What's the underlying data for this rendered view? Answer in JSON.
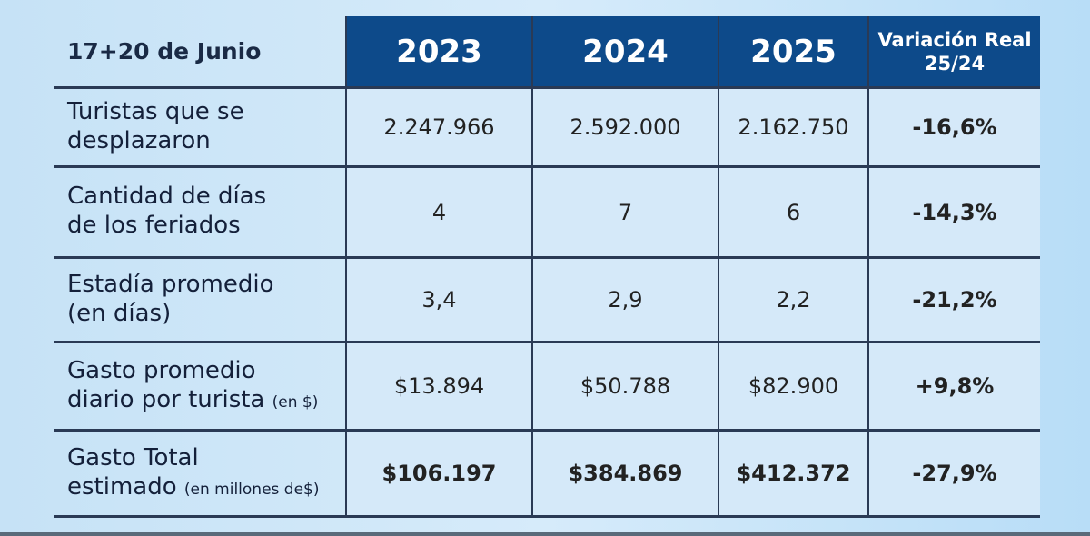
{
  "chart_data": {
    "type": "table",
    "title": "17+20 de Junio",
    "columns": [
      "2023",
      "2024",
      "2025",
      "Variación Real",
      "25/24"
    ],
    "rows": [
      {
        "label": "Turistas que se",
        "label2": "desplazaron",
        "unit": "",
        "values": [
          "2.247.966",
          "2.592.000",
          "2.162.750"
        ],
        "variation": "-16,6%"
      },
      {
        "label": "Cantidad de días",
        "label2": "de los feriados",
        "unit": "",
        "values": [
          "4",
          "7",
          "6"
        ],
        "variation": "-14,3%"
      },
      {
        "label": "Estadía promedio",
        "label2": "(en días)",
        "unit": "",
        "values": [
          "3,4",
          "2,9",
          "2,2"
        ],
        "variation": "-21,2%"
      },
      {
        "label": "Gasto promedio",
        "label2": "diario por turista",
        "unit": "(en $)",
        "values": [
          "$13.894",
          "$50.788",
          "$82.900"
        ],
        "variation": "+9,8%"
      },
      {
        "label": "Gasto Total",
        "label2": "estimado",
        "unit": "(en millones de$)",
        "values": [
          "$106.197",
          "$384.869",
          "$412.372"
        ],
        "variation": "-27,9%"
      }
    ]
  },
  "colors": {
    "header_bg": "#0d4a8a",
    "cell_bg": "#d5e9f9"
  }
}
